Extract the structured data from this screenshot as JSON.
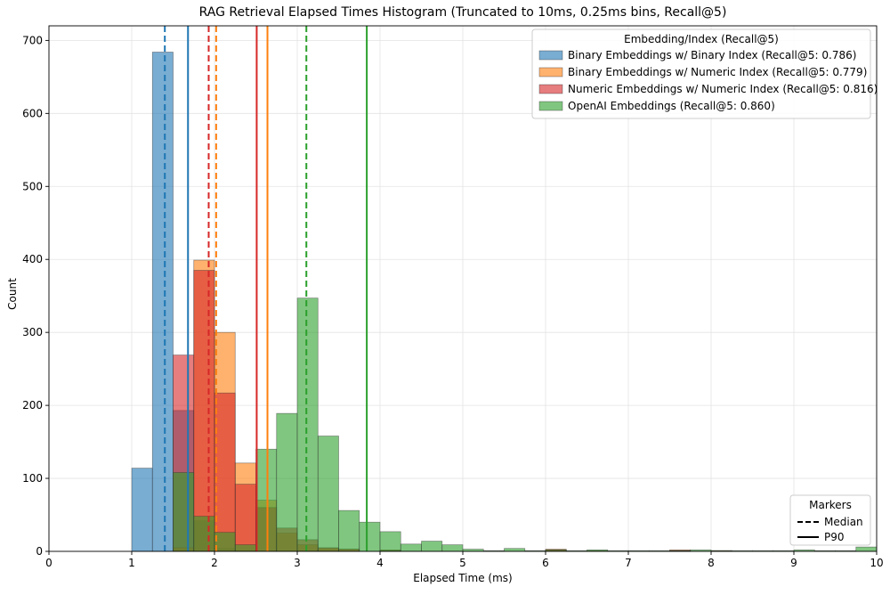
{
  "chart_data": {
    "type": "bar",
    "title": "RAG Retrieval Elapsed Times Histogram (Truncated to 10ms, 0.25ms bins, Recall@5)",
    "xlabel": "Elapsed Time (ms)",
    "ylabel": "Count",
    "xlim": [
      0,
      10
    ],
    "ylim": [
      0,
      720
    ],
    "bin_width": 0.25,
    "grid": true,
    "xticks": [
      0,
      1,
      2,
      3,
      4,
      5,
      6,
      7,
      8,
      9,
      10
    ],
    "yticks": [
      0,
      100,
      200,
      300,
      400,
      500,
      600,
      700
    ],
    "legend": {
      "title": "Embedding/Index (Recall@5)",
      "placement": "top-right"
    },
    "marker_legend": {
      "title": "Markers",
      "placement": "lower-right",
      "items": [
        {
          "label": "Median",
          "style": "dashed"
        },
        {
          "label": "P90",
          "style": "solid"
        }
      ]
    },
    "series": [
      {
        "name": "Binary Embeddings w/ Binary Index (Recall@5: 0.786)",
        "color": "#1f77b4",
        "median": 1.4,
        "p90": 1.68,
        "bins": [
          [
            1.0,
            114
          ],
          [
            1.25,
            684
          ],
          [
            1.5,
            193
          ],
          [
            1.75,
            42
          ],
          [
            2.0,
            4
          ],
          [
            2.25,
            1
          ]
        ]
      },
      {
        "name": "Binary Embeddings w/ Numeric Index (Recall@5: 0.779)",
        "color": "#ff7f0e",
        "median": 2.02,
        "p90": 2.64,
        "bins": [
          [
            1.5,
            5
          ],
          [
            1.75,
            399
          ],
          [
            2.0,
            300
          ],
          [
            2.25,
            121
          ],
          [
            2.5,
            70
          ],
          [
            2.75,
            25
          ],
          [
            3.0,
            9
          ],
          [
            3.25,
            4
          ],
          [
            3.5,
            3
          ],
          [
            4.0,
            2
          ],
          [
            6.0,
            3
          ],
          [
            6.5,
            1
          ],
          [
            7.5,
            2
          ],
          [
            8.0,
            1
          ]
        ]
      },
      {
        "name": "Numeric Embeddings w/ Numeric Index (Recall@5: 0.816)",
        "color": "#d62728",
        "median": 1.93,
        "p90": 2.51,
        "bins": [
          [
            1.5,
            269
          ],
          [
            1.75,
            385
          ],
          [
            2.0,
            217
          ],
          [
            2.25,
            92
          ],
          [
            2.5,
            60
          ],
          [
            2.75,
            32
          ],
          [
            3.0,
            16
          ],
          [
            3.25,
            5
          ],
          [
            3.5,
            3
          ],
          [
            4.0,
            1
          ],
          [
            6.0,
            2
          ],
          [
            7.5,
            1
          ]
        ]
      },
      {
        "name": "OpenAI Embeddings (Recall@5: 0.860)",
        "color": "#2ca02c",
        "median": 3.11,
        "p90": 3.84,
        "bins": [
          [
            1.5,
            108
          ],
          [
            1.75,
            48
          ],
          [
            2.0,
            26
          ],
          [
            2.25,
            9
          ],
          [
            2.5,
            140
          ],
          [
            2.75,
            189
          ],
          [
            3.0,
            347
          ],
          [
            3.25,
            158
          ],
          [
            3.5,
            56
          ],
          [
            3.75,
            40
          ],
          [
            4.0,
            27
          ],
          [
            4.25,
            10
          ],
          [
            4.5,
            14
          ],
          [
            4.75,
            9
          ],
          [
            5.0,
            3
          ],
          [
            5.25,
            1
          ],
          [
            5.5,
            4
          ],
          [
            5.75,
            1
          ],
          [
            6.0,
            2
          ],
          [
            6.25,
            1
          ],
          [
            6.5,
            2
          ],
          [
            6.75,
            1
          ],
          [
            7.0,
            1
          ],
          [
            7.25,
            1
          ],
          [
            7.5,
            1
          ],
          [
            7.75,
            2
          ],
          [
            8.0,
            1
          ],
          [
            8.25,
            1
          ],
          [
            8.5,
            1
          ],
          [
            8.75,
            1
          ],
          [
            9.0,
            2
          ],
          [
            9.25,
            1
          ],
          [
            9.5,
            1
          ],
          [
            9.75,
            6
          ]
        ]
      }
    ]
  }
}
